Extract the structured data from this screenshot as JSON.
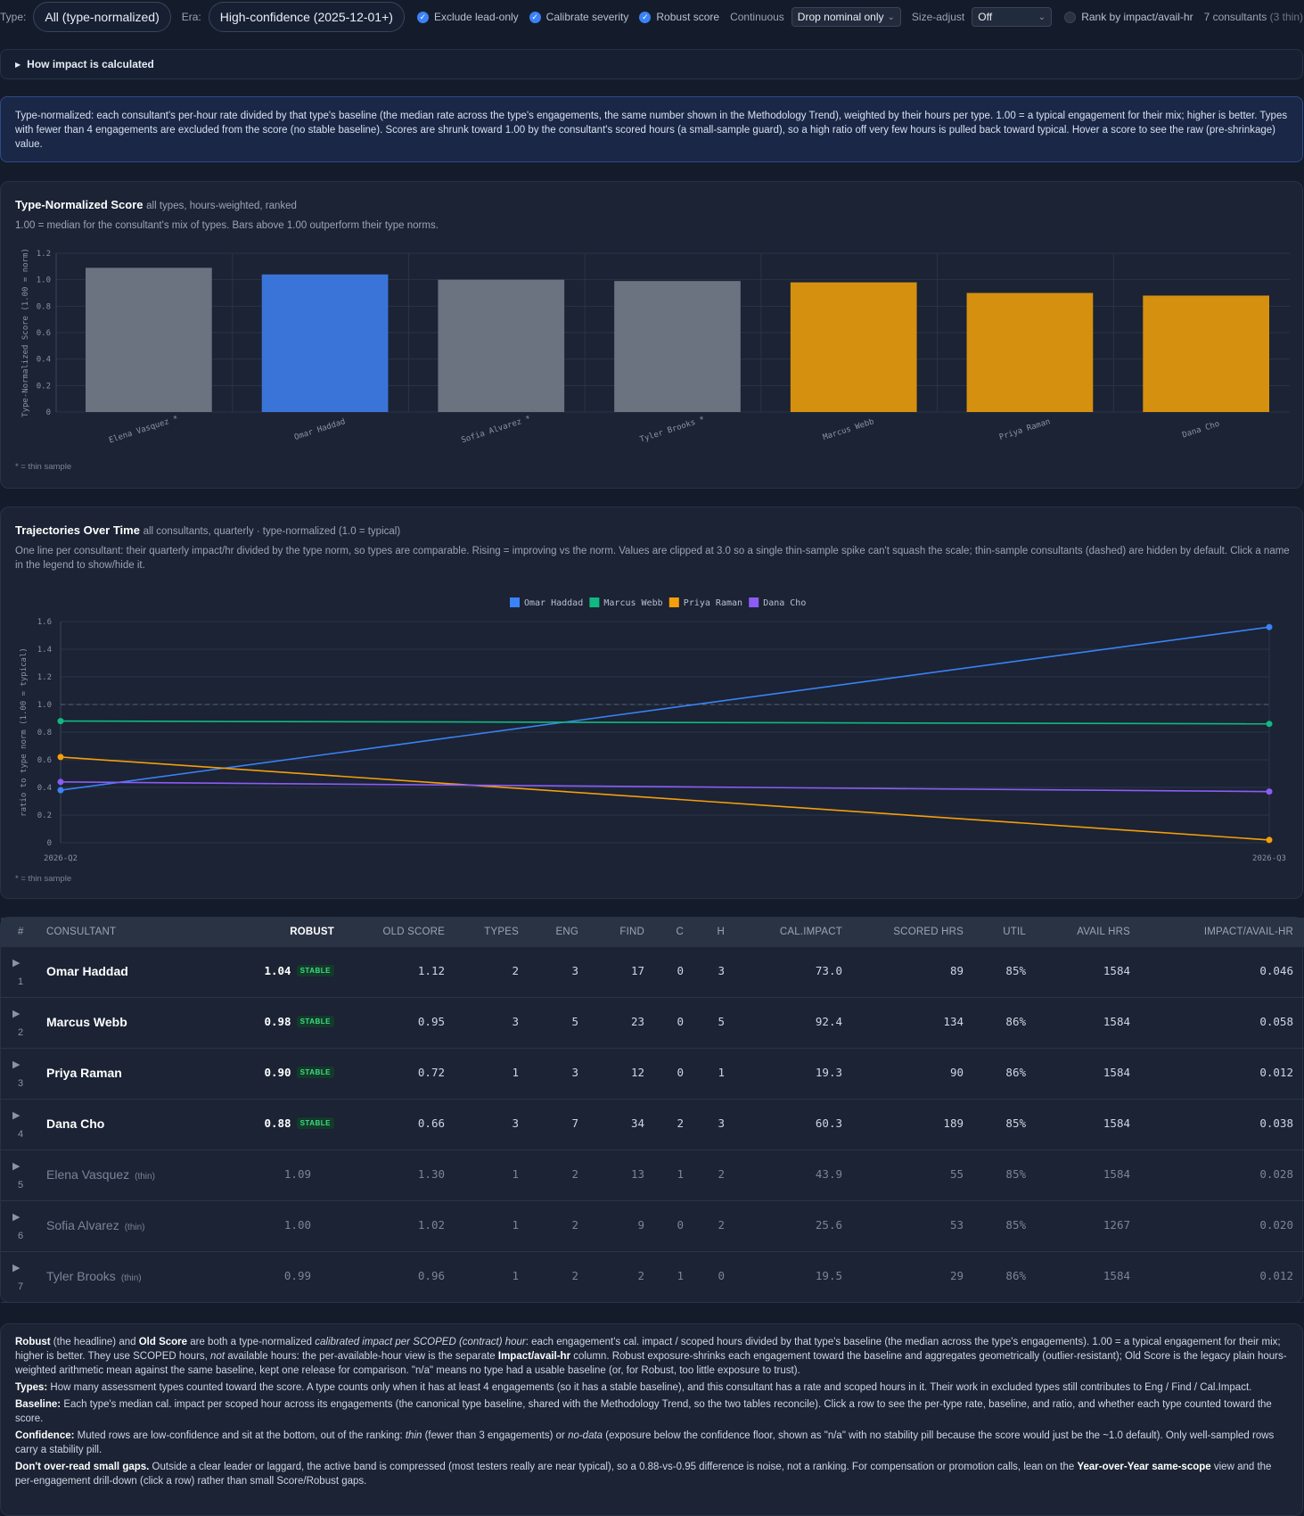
{
  "toolbar": {
    "type_label": "Type:",
    "type_value": "All (type-normalized)",
    "era_label": "Era:",
    "era_value": "High-confidence (2025-12-01+)",
    "exclude_lead_only": "Exclude lead-only",
    "calibrate_severity": "Calibrate severity",
    "robust_score": "Robust score",
    "continuous_label": "Continuous",
    "continuous_value": "Drop nominal only",
    "size_adjust_label": "Size-adjust",
    "size_adjust_value": "Off",
    "rank_by": "Rank by impact/avail-hr",
    "consultants_count": "7 consultants",
    "thin_count": "(3 thin)"
  },
  "details": {
    "summary": "How impact is calculated"
  },
  "banner": {
    "text": "Type-normalized: each consultant's per-hour rate divided by that type's baseline (the median rate across the type's engagements, the same number shown in the Methodology Trend), weighted by their hours per type. 1.00 = a typical engagement for their mix; higher is better. Types with fewer than 4 engagements are excluded from the score (no stable baseline). Scores are shrunk toward 1.00 by the consultant's scored hours (a small-sample guard), so a high ratio off very few hours is pulled back toward typical. Hover a score to see the raw (pre-shrinkage) value."
  },
  "score_panel": {
    "title": "Type-Normalized Score",
    "subtitle": "all types, hours-weighted, ranked",
    "description": "1.00 = median for the consultant's mix of types. Bars above 1.00 outperform their type norms.",
    "footnote": "* = thin sample"
  },
  "trajectory_panel": {
    "title": "Trajectories Over Time",
    "subtitle": "all consultants, quarterly · type-normalized (1.0 = typical)",
    "description": "One line per consultant: their quarterly impact/hr divided by the type norm, so types are comparable. Rising = improving vs the norm. Values are clipped at 3.0 so a single thin-sample spike can't squash the scale; thin-sample consultants (dashed) are hidden by default. Click a name in the legend to show/hide it.",
    "footnote": "* = thin sample"
  },
  "chart_data": [
    {
      "type": "bar",
      "ylabel": "Type-Normalized Score (1.00 = norm)",
      "ylim": [
        0,
        1.2
      ],
      "yticks": [
        "0",
        "0.2",
        "0.4",
        "0.6",
        "0.8",
        "1.0",
        "1.2"
      ],
      "categories": [
        "Elena Vasquez *",
        "Omar Haddad",
        "Sofia Alvarez *",
        "Tyler Brooks *",
        "Marcus Webb",
        "Priya Raman",
        "Dana Cho"
      ],
      "values": [
        1.09,
        1.04,
        1.0,
        0.99,
        0.98,
        0.9,
        0.88
      ],
      "colors": [
        "#6b7280",
        "#3b74d9",
        "#6b7280",
        "#6b7280",
        "#d6900f",
        "#d6900f",
        "#d6900f"
      ],
      "grid": true
    },
    {
      "type": "line",
      "ylabel": "ratio to type norm (1.00 = typical)",
      "ylim": [
        0,
        1.6
      ],
      "yticks": [
        "0",
        "0.2",
        "0.4",
        "0.6",
        "0.8",
        "1.0",
        "1.2",
        "1.4",
        "1.6"
      ],
      "x": [
        "2026-Q2",
        "2026-Q3"
      ],
      "reference_line": 1.0,
      "legend_position": "top-center",
      "series": [
        {
          "name": "Omar Haddad",
          "color": "#3b82f6",
          "values": [
            0.38,
            1.56
          ]
        },
        {
          "name": "Marcus Webb",
          "color": "#10b981",
          "values": [
            0.88,
            0.86
          ]
        },
        {
          "name": "Priya Raman",
          "color": "#f59e0b",
          "values": [
            0.62,
            0.02
          ]
        },
        {
          "name": "Dana Cho",
          "color": "#8b5cf6",
          "values": [
            0.44,
            0.37
          ]
        }
      ],
      "grid": true
    }
  ],
  "table": {
    "headers": {
      "rank": "#",
      "consultant": "CONSULTANT",
      "robust": "ROBUST",
      "old_score": "OLD SCORE",
      "types": "TYPES",
      "eng": "ENG",
      "find": "FIND",
      "c": "C",
      "h": "H",
      "cal_impact": "CAL.IMPACT",
      "scored_hrs": "SCORED HRS",
      "util": "UTIL",
      "avail_hrs": "AVAIL HRS",
      "impact_avail_hr": "IMPACT/AVAIL-HR"
    },
    "stable_label": "STABLE",
    "thin_label": "(thin)",
    "rows": [
      {
        "rank": "1",
        "name": "Omar Haddad",
        "robust": "1.04",
        "stable": true,
        "old_score": "1.12",
        "types": "2",
        "eng": "3",
        "find": "17",
        "c": "0",
        "h": "3",
        "cal_impact": "73.0",
        "scored_hrs": "89",
        "util": "85%",
        "avail_hrs": "1584",
        "impact_avail_hr": "0.046",
        "thin": false
      },
      {
        "rank": "2",
        "name": "Marcus Webb",
        "robust": "0.98",
        "stable": true,
        "old_score": "0.95",
        "types": "3",
        "eng": "5",
        "find": "23",
        "c": "0",
        "h": "5",
        "cal_impact": "92.4",
        "scored_hrs": "134",
        "util": "86%",
        "avail_hrs": "1584",
        "impact_avail_hr": "0.058",
        "thin": false
      },
      {
        "rank": "3",
        "name": "Priya Raman",
        "robust": "0.90",
        "stable": true,
        "old_score": "0.72",
        "types": "1",
        "eng": "3",
        "find": "12",
        "c": "0",
        "h": "1",
        "cal_impact": "19.3",
        "scored_hrs": "90",
        "util": "86%",
        "avail_hrs": "1584",
        "impact_avail_hr": "0.012",
        "thin": false
      },
      {
        "rank": "4",
        "name": "Dana Cho",
        "robust": "0.88",
        "stable": true,
        "old_score": "0.66",
        "types": "3",
        "eng": "7",
        "find": "34",
        "c": "2",
        "h": "3",
        "cal_impact": "60.3",
        "scored_hrs": "189",
        "util": "85%",
        "avail_hrs": "1584",
        "impact_avail_hr": "0.038",
        "thin": false
      },
      {
        "rank": "5",
        "name": "Elena Vasquez",
        "robust": "1.09",
        "stable": false,
        "old_score": "1.30",
        "types": "1",
        "eng": "2",
        "find": "13",
        "c": "1",
        "h": "2",
        "cal_impact": "43.9",
        "scored_hrs": "55",
        "util": "85%",
        "avail_hrs": "1584",
        "impact_avail_hr": "0.028",
        "thin": true
      },
      {
        "rank": "6",
        "name": "Sofia Alvarez",
        "robust": "1.00",
        "stable": false,
        "old_score": "1.02",
        "types": "1",
        "eng": "2",
        "find": "9",
        "c": "0",
        "h": "2",
        "cal_impact": "25.6",
        "scored_hrs": "53",
        "util": "85%",
        "avail_hrs": "1267",
        "impact_avail_hr": "0.020",
        "thin": true
      },
      {
        "rank": "7",
        "name": "Tyler Brooks",
        "robust": "0.99",
        "stable": false,
        "old_score": "0.96",
        "types": "1",
        "eng": "2",
        "find": "2",
        "c": "1",
        "h": "0",
        "cal_impact": "19.5",
        "scored_hrs": "29",
        "util": "86%",
        "avail_hrs": "1584",
        "impact_avail_hr": "0.012",
        "thin": true
      }
    ]
  },
  "notes": {
    "robust_b1": "Robust",
    "robust_t1": " (the headline) and ",
    "robust_b2": "Old Score",
    "robust_t2": " are both a type-normalized ",
    "robust_i1": "calibrated impact per SCOPED (contract) hour",
    "robust_t3": ": each engagement's cal. impact / scoped hours divided by that type's baseline (the median across the type's engagements). 1.00 = a typical engagement for their mix; higher is better. They use SCOPED hours, ",
    "robust_i2": "not",
    "robust_t4": " available hours: the per-available-hour view is the separate ",
    "robust_b3": "Impact/avail-hr",
    "robust_t5": " column. Robust exposure-shrinks each engagement toward the baseline and aggregates geometrically (outlier-resistant); Old Score is the legacy plain hours-weighted arithmetic mean against the same baseline, kept one release for comparison. \"n/a\" means no type had a usable baseline (or, for Robust, too little exposure to trust).",
    "types_b": "Types:",
    "types_t": " How many assessment types counted toward the score. A type counts only when it has at least 4 engagements (so it has a stable baseline), and this consultant has a rate and scoped hours in it. Their work in excluded types still contributes to Eng / Find / Cal.Impact.",
    "baseline_b": "Baseline:",
    "baseline_t": " Each type's median cal. impact per scoped hour across its engagements (the canonical type baseline, shared with the Methodology Trend, so the two tables reconcile). Click a row to see the per-type rate, baseline, and ratio, and whether each type counted toward the score.",
    "conf_b": "Confidence:",
    "conf_t1": " Muted rows are low-confidence and sit at the bottom, out of the ranking: ",
    "conf_i1": "thin",
    "conf_t2": " (fewer than 3 engagements) or ",
    "conf_i2": "no-data",
    "conf_t3": " (exposure below the confidence floor, shown as \"n/a\" with no stability pill because the score would just be the ~1.0 default). Only well-sampled rows carry a stability pill.",
    "gaps_b": "Don't over-read small gaps.",
    "gaps_t1": " Outside a clear leader or laggard, the active band is compressed (most testers really are near typical), so a 0.88-vs-0.95 difference is noise, not a ranking. For compensation or promotion calls, lean on the ",
    "gaps_b2": "Year-over-Year same-scope",
    "gaps_t2": " view and the per-engagement drill-down (click a row) rather than small Score/Robust gaps."
  }
}
